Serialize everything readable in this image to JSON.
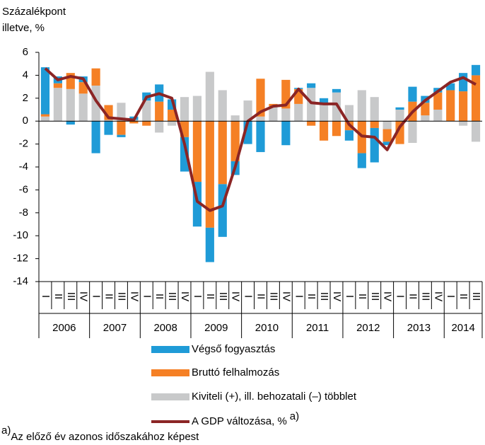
{
  "chart_data": {
    "type": "bar",
    "stacked": true,
    "ylabel_lines": [
      "Százalékpont",
      "illetve, %"
    ],
    "categories": [
      "I",
      "II",
      "III",
      "IV",
      "I",
      "II",
      "III",
      "IV",
      "I",
      "II",
      "III",
      "IV",
      "I",
      "II",
      "III",
      "IV",
      "I",
      "II",
      "III",
      "IV",
      "I",
      "II",
      "III",
      "IV",
      "I",
      "II",
      "III",
      "IV",
      "I",
      "II",
      "III",
      "IV",
      "I",
      "II",
      "III"
    ],
    "years": [
      "2006",
      "2007",
      "2008",
      "2009",
      "2010",
      "2011",
      "2012",
      "2013",
      "2014"
    ],
    "ylim": [
      -14,
      6
    ],
    "yticks": [
      6,
      4,
      2,
      0,
      -2,
      -4,
      -6,
      -8,
      -10,
      -12,
      -14
    ],
    "grid": false,
    "series": [
      {
        "name": "Kiviteli (+), ill. behozatali (–) többlet",
        "color": "#c8c9ca",
        "values": [
          0.4,
          2.9,
          2.8,
          2.4,
          3.1,
          0.1,
          1.6,
          0.1,
          1.8,
          -1.0,
          -0.4,
          2.1,
          2.2,
          4.3,
          2.7,
          0.5,
          1.8,
          0.4,
          1.3,
          1.1,
          1.5,
          2.9,
          1.4,
          2.5,
          1.4,
          2.7,
          2.1,
          -0.7,
          1.0,
          -1.9,
          0.5,
          1.0,
          0.0,
          -0.4,
          -1.8
        ]
      },
      {
        "name": "Bruttó felhalmozás",
        "color": "#f58025",
        "values": [
          0.2,
          0.4,
          1.4,
          1.0,
          1.5,
          1.3,
          -1.2,
          -0.2,
          -0.4,
          1.7,
          1.0,
          -1.4,
          -5.3,
          -9.3,
          -5.5,
          -3.5,
          0.0,
          3.3,
          0.2,
          2.5,
          1.3,
          -0.4,
          -1.7,
          -1.3,
          -0.8,
          -2.8,
          -0.6,
          -1.1,
          -2.0,
          1.7,
          1.1,
          1.5,
          2.7,
          2.6,
          4.0
        ]
      },
      {
        "name": "Végső fogyasztás",
        "color": "#1f9bd7",
        "values": [
          4.1,
          0.6,
          -0.3,
          0.5,
          -2.8,
          -1.2,
          -0.2,
          0.3,
          0.7,
          1.5,
          0.9,
          -3.0,
          -3.9,
          -3.0,
          -4.6,
          -1.2,
          -2.0,
          -2.7,
          0.0,
          -2.1,
          0.1,
          0.4,
          0.6,
          0.3,
          -0.9,
          -1.3,
          -3.0,
          -0.3,
          0.2,
          1.3,
          0.6,
          0.4,
          0.6,
          1.6,
          0.9
        ]
      },
      {
        "name": "A GDP változása, %",
        "name_note": "a)",
        "type": "line",
        "color": "#8b2525",
        "values": [
          4.6,
          3.6,
          3.9,
          3.7,
          1.8,
          0.3,
          0.2,
          0.1,
          2.1,
          2.4,
          2.0,
          -2.0,
          -7.0,
          -7.8,
          -7.4,
          -4.0,
          0.0,
          0.8,
          1.3,
          1.4,
          2.8,
          1.6,
          1.5,
          1.5,
          -0.3,
          -1.3,
          -1.4,
          -2.5,
          -0.5,
          0.8,
          1.8,
          2.6,
          3.4,
          3.8,
          3.2
        ]
      }
    ],
    "legend_order": [
      2,
      1,
      0,
      3
    ],
    "footnote": {
      "marker": "a)",
      "text": "Az előző év azonos időszakához képest"
    }
  }
}
